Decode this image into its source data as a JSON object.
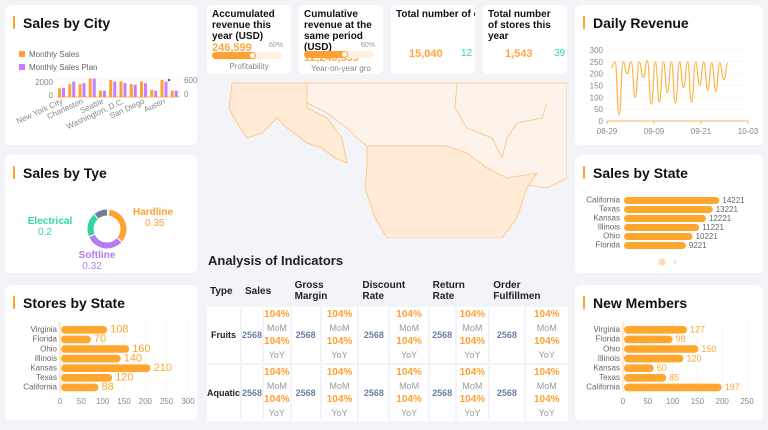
{
  "city": {
    "title": "Sales by City",
    "legend": [
      "Monthly Sales",
      "Monthly Sales Plan"
    ],
    "left_ticks": [
      "2000",
      "0"
    ],
    "right_ticks": [
      "600",
      "0"
    ],
    "chart_data": {
      "type": "bar",
      "x_tick_labels": [
        "New York City",
        "Charleston",
        "Seattle",
        "Washington, D.C.",
        "San Diego",
        "Austin"
      ],
      "series": [
        {
          "name": "Monthly Sales",
          "axis": "left",
          "color": "#ffa032",
          "values": [
            1200,
            1800,
            1800,
            2600,
            900,
            2400,
            2200,
            1800,
            2200,
            1000,
            2400,
            900
          ]
        },
        {
          "name": "Monthly Sales Plan",
          "axis": "right",
          "color": "#c77dff",
          "values": [
            300,
            500,
            450,
            600,
            200,
            500,
            450,
            400,
            450,
            200,
            500,
            200
          ]
        }
      ],
      "ylim_left": [
        0,
        2800
      ],
      "ylim_right": [
        0,
        650
      ]
    }
  },
  "type": {
    "title": "Sales by Tye",
    "chart_data": {
      "type": "pie",
      "slices": [
        {
          "name": "Hardline",
          "value": 0.35,
          "color": "#ffa032"
        },
        {
          "name": "Softline",
          "value": 0.32,
          "color": "#b57bf2"
        },
        {
          "name": "Electrical",
          "value": 0.2,
          "color": "#2fd6a5"
        },
        {
          "value": 0.12,
          "color": "#6e7f99"
        },
        {
          "value": 0.01,
          "color": "#5aa0f0"
        }
      ]
    }
  },
  "stores": {
    "title": "Stores by State",
    "chart_data": {
      "type": "bar",
      "orientation": "horizontal",
      "categories": [
        "Virginia",
        "Florida",
        "Ohio",
        "Illinois",
        "Kansas",
        "Texas",
        "California"
      ],
      "values": [
        108,
        70,
        160,
        140,
        210,
        120,
        88
      ],
      "xlim": [
        0,
        300
      ],
      "ticks": [
        "0",
        "50",
        "100",
        "150",
        "200",
        "250",
        "300"
      ]
    }
  },
  "kpis": [
    {
      "title": "Accumulated revenue this year (USD)",
      "value": "246,599",
      "percent": "60%",
      "progress": 60,
      "sub": "Profitability"
    },
    {
      "title": "Cumulative revenue at the same period (USD)",
      "value": "12,240,599",
      "percent": "60%",
      "progress": 60,
      "sub": "Year-on-year gro"
    },
    {
      "title": "Total number of customers this y",
      "value": "15,040",
      "extra": "12"
    },
    {
      "title": "Total number of stores this year",
      "value": "1,543",
      "extra": "39"
    }
  ],
  "analysis": {
    "title": "Analysis of Indicators",
    "headers": [
      "Type",
      "Sales",
      "Gross Margin",
      "Discount Rate",
      "Return Rate",
      "Order Fulfillmen"
    ],
    "rows": [
      {
        "type": "Fruits",
        "value": "2568",
        "mom": "104%",
        "mom_label": "MoM",
        "yoy": "104%",
        "yoy_label": "YoY"
      },
      {
        "type": "Aquatic",
        "value": "2568",
        "mom": "104%",
        "mom_label": "MoM",
        "yoy": "104%",
        "yoy_label": "YoY"
      }
    ]
  },
  "daily": {
    "title": "Daily Revenue",
    "chart_data": {
      "type": "line",
      "color": "#ffb347",
      "x_start": "08-30",
      "x_ticks": [
        "08-29",
        "09-09",
        "09-21",
        "10-03"
      ],
      "ylim": [
        0,
        300
      ],
      "y_ticks": [
        "300",
        "250",
        "200",
        "150",
        "100",
        "50",
        "0"
      ],
      "values": [
        225,
        250,
        25,
        250,
        200,
        250,
        100,
        250,
        185,
        255,
        70,
        250,
        80,
        250,
        120,
        250,
        75,
        250,
        140,
        250,
        80,
        250,
        150,
        250,
        130,
        245,
        125,
        245,
        175,
        245
      ]
    }
  },
  "state": {
    "title": "Sales by State",
    "chart_data": {
      "type": "bar",
      "orientation": "horizontal",
      "categories": [
        "California",
        "Texas",
        "Kansas",
        "Illinois",
        "Ohio",
        "Florida"
      ],
      "values": [
        14221,
        13221,
        12221,
        11221,
        10221,
        9221
      ],
      "xlim": [
        0,
        15500
      ]
    },
    "pages": 2,
    "active_page": 1
  },
  "members": {
    "title": "New Members",
    "chart_data": {
      "type": "bar",
      "orientation": "horizontal",
      "categories": [
        "Virginia",
        "Florida",
        "Ohio",
        "Illinois",
        "Kansas",
        "Texas",
        "California"
      ],
      "values": [
        127,
        98,
        150,
        120,
        60,
        85,
        197
      ],
      "xlim": [
        0,
        250
      ],
      "ticks": [
        "0",
        "50",
        "100",
        "150",
        "200",
        "250"
      ]
    }
  },
  "colors": {
    "accent": "#ffa032",
    "value_blue": "#6b7fa3",
    "teal": "#2fd6a5",
    "map_fill": "#ffebd6",
    "map_stroke": "#ffbf7a"
  }
}
